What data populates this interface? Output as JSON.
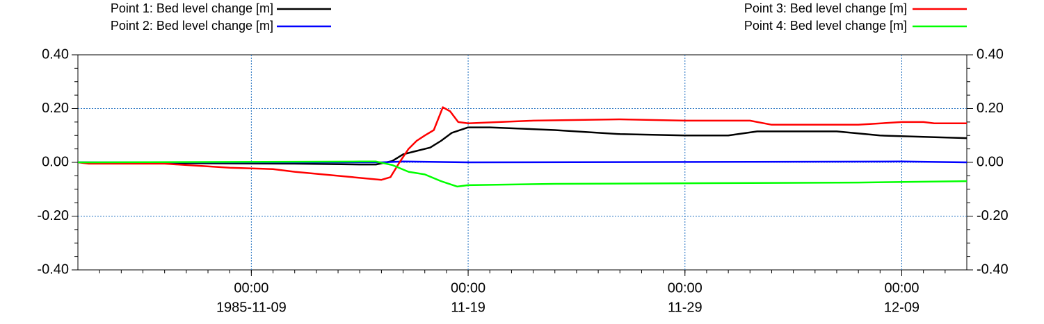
{
  "chart_data": {
    "type": "line",
    "xlim": [
      "1985-11-01T00:00",
      "1985-12-12T00:00"
    ],
    "xticks": [
      {
        "value": "1985-11-09T00:00",
        "label": "00:00"
      },
      {
        "value": "1985-11-19T00:00",
        "label": "00:00"
      },
      {
        "value": "1985-11-29T00:00",
        "label": "00:00"
      },
      {
        "value": "1985-12-09T00:00",
        "label": "00:00"
      }
    ],
    "xtick_date_labels": [
      "1985-11-09",
      "11-19",
      "11-29",
      "12-09"
    ],
    "ylim": [
      -0.4,
      0.4
    ],
    "yticks": [
      {
        "value": -0.4,
        "label": "-0.40"
      },
      {
        "value": -0.2,
        "label": "-0.20"
      },
      {
        "value": 0,
        "label": "0.00"
      },
      {
        "value": 0.2,
        "label": "0.20"
      },
      {
        "value": 0.4,
        "label": "0.40"
      }
    ],
    "grid": true,
    "series": [
      {
        "name": "Point 1: Bed level change [m]",
        "color": "#000000",
        "x": [
          "1985-11-01T00:00",
          "1985-11-06T00:00",
          "1985-11-11T00:00",
          "1985-11-14T00:00",
          "1985-11-14T18:00",
          "1985-11-15T12:00",
          "1985-11-16T00:00",
          "1985-11-16T12:00",
          "1985-11-17T06:00",
          "1985-11-17T18:00",
          "1985-11-18T06:00",
          "1985-11-19T00:00",
          "1985-11-20T00:00",
          "1985-11-23T00:00",
          "1985-11-26T00:00",
          "1985-11-29T00:00",
          "1985-12-01T00:00",
          "1985-12-02T08:00",
          "1985-12-06T00:00",
          "1985-12-08T00:00",
          "1985-12-10T00:00",
          "1985-12-12T00:00"
        ],
        "values": [
          0,
          -0.003,
          -0.005,
          -0.008,
          -0.008,
          0.005,
          0.03,
          0.04,
          0.055,
          0.08,
          0.11,
          0.13,
          0.13,
          0.12,
          0.105,
          0.1,
          0.1,
          0.115,
          0.115,
          0.1,
          0.095,
          0.09
        ]
      },
      {
        "name": "Point 2: Bed level change [m]",
        "color": "#0000ff",
        "x": [
          "1985-11-01T00:00",
          "1985-11-15T00:00",
          "1985-11-16T00:00",
          "1985-11-19T00:00",
          "1985-12-09T00:00",
          "1985-12-12T00:00"
        ],
        "values": [
          0,
          0,
          0.003,
          0,
          0.003,
          0
        ]
      },
      {
        "name": "Point 3: Bed level change [m]",
        "color": "#ff0000",
        "x": [
          "1985-11-01T00:00",
          "1985-11-01T12:00",
          "1985-11-05T00:00",
          "1985-11-06T00:00",
          "1985-11-08T00:00",
          "1985-11-10T00:00",
          "1985-11-11T00:00",
          "1985-11-13T00:00",
          "1985-11-15T00:00",
          "1985-11-15T10:00",
          "1985-11-15T20:00",
          "1985-11-16T06:00",
          "1985-11-16T15:00",
          "1985-11-17T00:00",
          "1985-11-17T10:00",
          "1985-11-17T20:00",
          "1985-11-18T04:00",
          "1985-11-18T13:00",
          "1985-11-19T00:00",
          "1985-11-22T00:00",
          "1985-11-26T00:00",
          "1985-11-29T00:00",
          "1985-12-02T00:00",
          "1985-12-03T00:00",
          "1985-12-07T00:00",
          "1985-12-09T00:00",
          "1985-12-10T00:00",
          "1985-12-10T12:00",
          "1985-12-12T00:00"
        ],
        "values": [
          0,
          -0.005,
          -0.005,
          -0.01,
          -0.02,
          -0.025,
          -0.035,
          -0.05,
          -0.065,
          -0.055,
          0,
          0.05,
          0.08,
          0.1,
          0.12,
          0.205,
          0.19,
          0.15,
          0.145,
          0.155,
          0.16,
          0.155,
          0.155,
          0.14,
          0.14,
          0.15,
          0.15,
          0.145,
          0.145
        ]
      },
      {
        "name": "Point 4: Bed level change [m]",
        "color": "#00ff00",
        "x": [
          "1985-11-01T00:00",
          "1985-11-14T00:00",
          "1985-11-14T18:00",
          "1985-11-15T12:00",
          "1985-11-16T06:00",
          "1985-11-17T00:00",
          "1985-11-17T18:00",
          "1985-11-18T12:00",
          "1985-11-19T00:00",
          "1985-11-23T00:00",
          "1985-12-07T00:00",
          "1985-12-12T00:00"
        ],
        "values": [
          0,
          0.003,
          0.003,
          -0.01,
          -0.035,
          -0.045,
          -0.07,
          -0.09,
          -0.085,
          -0.08,
          -0.075,
          -0.07
        ]
      }
    ]
  }
}
